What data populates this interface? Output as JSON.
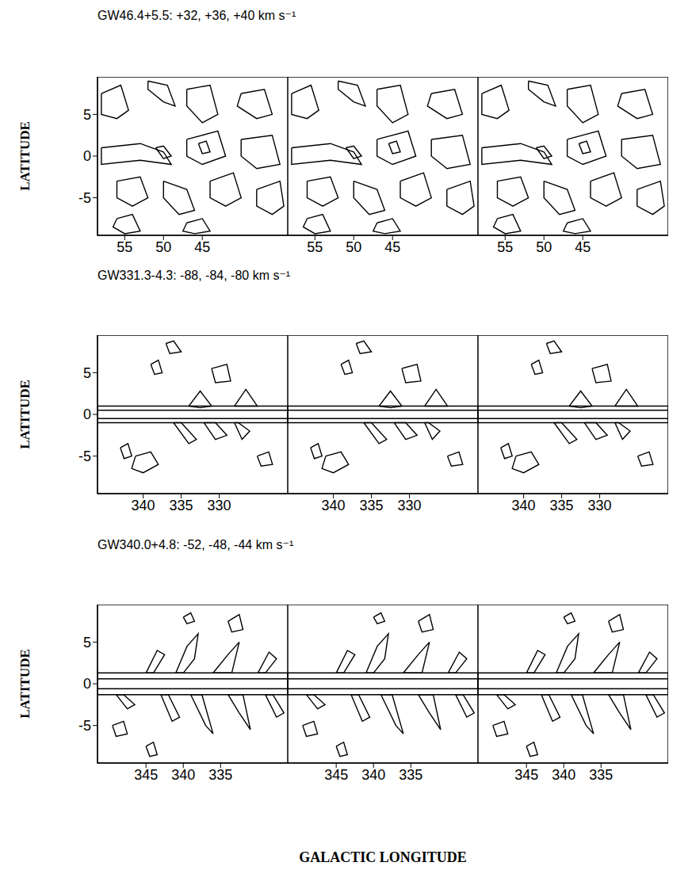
{
  "chart_data": [
    {
      "type": "contour",
      "title": "GW46.4+5.5: +32, +36, +40 km s⁻¹",
      "y_label": "LATITUDE",
      "velocities": [
        32,
        36,
        40
      ],
      "color": "#000000",
      "xlim": [
        58.5,
        34
      ],
      "xticks": [
        55,
        50,
        45
      ],
      "ylim": [
        -9.5,
        9.5
      ],
      "yticks": [
        -5,
        0,
        5
      ],
      "contours": [
        {
          "x": [
            58,
            55.5,
            54.5,
            56,
            58
          ],
          "y": [
            7.5,
            8.5,
            5.5,
            4.5,
            5
          ]
        },
        {
          "x": [
            52,
            49.5,
            48.5,
            50,
            52
          ],
          "y": [
            9,
            8.5,
            6,
            6.5,
            8
          ]
        },
        {
          "x": [
            47,
            44,
            43,
            45,
            47
          ],
          "y": [
            8,
            8.5,
            5,
            4,
            6
          ]
        },
        {
          "x": [
            40,
            37,
            36,
            38,
            40.5
          ],
          "y": [
            7.5,
            8,
            5,
            4.5,
            6
          ]
        },
        {
          "x": [
            58,
            53,
            50,
            49,
            53,
            58
          ],
          "y": [
            1,
            1.5,
            0.5,
            -1,
            -0.5,
            -1
          ]
        },
        {
          "x": [
            47,
            43,
            42,
            45,
            47
          ],
          "y": [
            2,
            3,
            0,
            -1,
            0
          ]
        },
        {
          "x": [
            40,
            36,
            35,
            38,
            40
          ],
          "y": [
            2,
            2.5,
            -1,
            -1.5,
            0
          ]
        },
        {
          "x": [
            56,
            53,
            52,
            54,
            56
          ],
          "y": [
            -3,
            -2.5,
            -5,
            -6,
            -5
          ]
        },
        {
          "x": [
            50,
            47,
            46,
            48,
            50
          ],
          "y": [
            -3,
            -4,
            -6.5,
            -7,
            -5
          ]
        },
        {
          "x": [
            44,
            41,
            40,
            42,
            44
          ],
          "y": [
            -3,
            -2,
            -5,
            -6,
            -5
          ]
        },
        {
          "x": [
            38,
            35,
            34.5,
            36,
            38
          ],
          "y": [
            -4,
            -3,
            -6,
            -7,
            -6
          ]
        },
        {
          "x": [
            56,
            54,
            53,
            55,
            56.5
          ],
          "y": [
            -7.5,
            -7,
            -9,
            -9.3,
            -8.5
          ]
        },
        {
          "x": [
            47,
            45,
            44,
            46,
            47.5
          ],
          "y": [
            -8,
            -7.5,
            -9,
            -9.3,
            -9
          ]
        },
        {
          "x": [
            51,
            50,
            49,
            50
          ],
          "y": [
            1,
            1.2,
            0,
            -0.3
          ]
        },
        {
          "x": [
            45.5,
            44.5,
            44,
            45
          ],
          "y": [
            1.5,
            1.8,
            0.5,
            0.3
          ]
        }
      ]
    },
    {
      "type": "contour",
      "title": "GW331.3-4.3: -88, -84, -80 km s⁻¹",
      "y_label": "LATITUDE",
      "velocities": [
        -88,
        -84,
        -80
      ],
      "color": "#000000",
      "xlim": [
        346,
        321
      ],
      "xticks": [
        340,
        335,
        330
      ],
      "ylim": [
        -9.5,
        9.5
      ],
      "yticks": [
        -5,
        0,
        5
      ],
      "contours": [
        {
          "x": [
            346,
            321,
            321,
            346
          ],
          "y": [
            1,
            1,
            -1,
            -1
          ]
        },
        {
          "x": [
            346,
            321,
            321,
            346
          ],
          "y": [
            0.5,
            0.5,
            -0.5,
            -0.5
          ]
        },
        {
          "x": [
            334,
            332.5,
            331,
            332.5
          ],
          "y": [
            1,
            2.8,
            1,
            0.8
          ]
        },
        {
          "x": [
            328,
            326.5,
            325,
            326.5
          ],
          "y": [
            1,
            3,
            1,
            1
          ]
        },
        {
          "x": [
            336,
            334,
            333,
            335
          ],
          "y": [
            -1,
            -3.5,
            -3,
            -1
          ]
        },
        {
          "x": [
            332,
            330.5,
            329,
            330.5
          ],
          "y": [
            -1,
            -3,
            -2.5,
            -1
          ]
        },
        {
          "x": [
            328,
            327,
            326,
            327.5
          ],
          "y": [
            -1,
            -3,
            -2,
            -1
          ]
        },
        {
          "x": [
            341,
            339,
            338,
            340,
            341.5
          ],
          "y": [
            -5,
            -4.5,
            -6,
            -7,
            -6.5
          ]
        },
        {
          "x": [
            331,
            329,
            328.5,
            330.5
          ],
          "y": [
            5.5,
            6,
            4,
            3.8
          ]
        },
        {
          "x": [
            337,
            336,
            335,
            336.5
          ],
          "y": [
            8.5,
            8.8,
            7.5,
            7.3
          ]
        },
        {
          "x": [
            343,
            342,
            341.5,
            342.5
          ],
          "y": [
            -4,
            -3.5,
            -5,
            -5.3
          ]
        },
        {
          "x": [
            325,
            323.5,
            323,
            324.5
          ],
          "y": [
            -5,
            -4.5,
            -6,
            -6.2
          ]
        },
        {
          "x": [
            339,
            338,
            337.5,
            338.5
          ],
          "y": [
            6,
            6.5,
            5,
            4.8
          ]
        }
      ]
    },
    {
      "type": "contour",
      "title": "GW340.0+4.8: -52, -48, -44 km s⁻¹",
      "y_label": "LATITUDE",
      "x_label": "GALACTIC LONGITUDE",
      "velocities": [
        -52,
        -48,
        -44
      ],
      "color": "#000000",
      "xlim": [
        351.5,
        326
      ],
      "xticks": [
        345,
        340,
        335
      ],
      "ylim": [
        -9.5,
        9.5
      ],
      "yticks": [
        -5,
        0,
        5
      ],
      "contours": [
        {
          "x": [
            351.5,
            326,
            326,
            351.5
          ],
          "y": [
            1.3,
            1.3,
            -1.3,
            -1.3
          ]
        },
        {
          "x": [
            351.5,
            326,
            326,
            351.5
          ],
          "y": [
            0.6,
            0.6,
            -0.6,
            -0.6
          ]
        },
        {
          "x": [
            345,
            343.5,
            342.5,
            344
          ],
          "y": [
            1.3,
            4,
            3.5,
            1.3
          ]
        },
        {
          "x": [
            341,
            339.5,
            338,
            338.5,
            340
          ],
          "y": [
            1.3,
            4.5,
            6,
            3,
            1.3
          ]
        },
        {
          "x": [
            336,
            334,
            332.5,
            333.5
          ],
          "y": [
            1.3,
            3.5,
            5,
            1.3
          ]
        },
        {
          "x": [
            330,
            328.5,
            327.5,
            329
          ],
          "y": [
            1.3,
            3.8,
            3,
            1.3
          ]
        },
        {
          "x": [
            349,
            347.5,
            346.5,
            348
          ],
          "y": [
            -1.3,
            -3,
            -2.5,
            -1.3
          ]
        },
        {
          "x": [
            343,
            341.5,
            340.5,
            342
          ],
          "y": [
            -1.3,
            -4.5,
            -4,
            -1.3
          ]
        },
        {
          "x": [
            339,
            337,
            336,
            337.5
          ],
          "y": [
            -1.3,
            -5,
            -6,
            -1.3
          ]
        },
        {
          "x": [
            334,
            332.5,
            331,
            332
          ],
          "y": [
            -1.3,
            -3.5,
            -5.5,
            -1.3
          ]
        },
        {
          "x": [
            329,
            327.5,
            326.5,
            328
          ],
          "y": [
            -1.3,
            -4,
            -3.5,
            -1.3
          ]
        },
        {
          "x": [
            349.5,
            348,
            347.5,
            349
          ],
          "y": [
            -5,
            -4.5,
            -6,
            -6.3
          ]
        },
        {
          "x": [
            340,
            339,
            338.5,
            339.5
          ],
          "y": [
            8,
            8.5,
            7.5,
            7.2
          ]
        },
        {
          "x": [
            334,
            332.5,
            332,
            333.5
          ],
          "y": [
            7.5,
            8.3,
            6.5,
            6.2
          ]
        },
        {
          "x": [
            345,
            344,
            343.5,
            344.5
          ],
          "y": [
            -7.5,
            -7,
            -8.5,
            -8.7
          ]
        }
      ]
    }
  ]
}
